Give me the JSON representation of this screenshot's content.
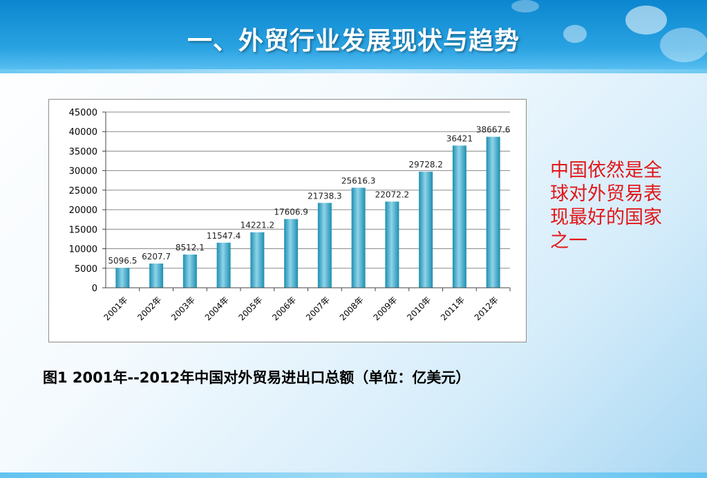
{
  "header": {
    "title": "一、外贸行业发展现状与趋势"
  },
  "side_note": "中国依然是全球对外贸易表现最好的国家之一",
  "caption": "图1   2001年--2012年中国对外贸易进出口总额（单位：亿美元）",
  "colors": {
    "bar_light": "#8fd4ea",
    "bar_dark": "#1d8fb0",
    "title_bg": "#1593d8",
    "note": "#e3161a"
  },
  "chart_data": {
    "type": "bar",
    "categories": [
      "2001年",
      "2002年",
      "2003年",
      "2004年",
      "2005年",
      "2006年",
      "2007年",
      "2008年",
      "2009年",
      "2010年",
      "2011年",
      "2012年"
    ],
    "values": [
      5096.5,
      6207.7,
      8512.1,
      11547.4,
      14221.2,
      17606.9,
      21738.3,
      25616.3,
      22072.2,
      29728.2,
      36421,
      38667.6
    ],
    "value_labels": [
      "5096.5",
      "6207.7",
      "8512.1",
      "11547.4",
      "14221.2",
      "17606.9",
      "21738.3",
      "25616.3",
      "22072.2",
      "29728.2",
      "36421",
      "38667.6"
    ],
    "yticks": [
      0,
      5000,
      10000,
      15000,
      20000,
      25000,
      30000,
      35000,
      40000,
      45000
    ],
    "ylim": [
      0,
      45000
    ],
    "grid": true,
    "title": "",
    "xlabel": "",
    "ylabel": ""
  }
}
